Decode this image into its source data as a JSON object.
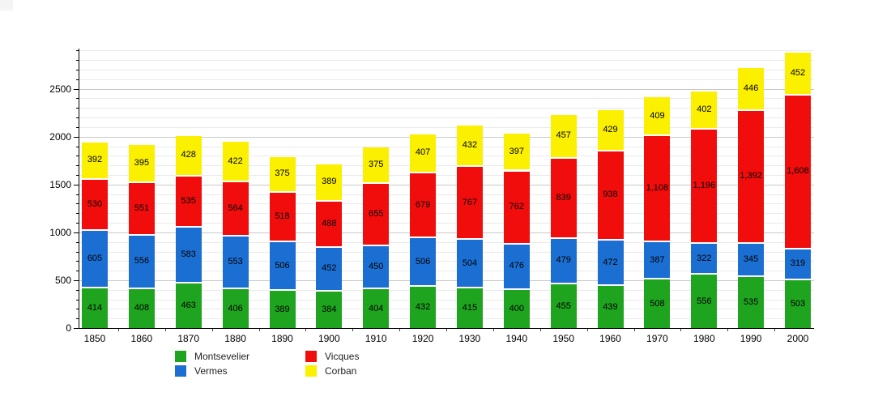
{
  "chart_data": {
    "type": "bar",
    "stacked": true,
    "title": "",
    "categories": [
      "1850",
      "1860",
      "1870",
      "1880",
      "1890",
      "1900",
      "1910",
      "1920",
      "1930",
      "1940",
      "1950",
      "1960",
      "1970",
      "1980",
      "1990",
      "2000"
    ],
    "series": [
      {
        "name": "Montsevelier",
        "color": "#1fa41f",
        "values": [
          414,
          408,
          463,
          406,
          389,
          384,
          404,
          432,
          415,
          400,
          455,
          439,
          508,
          556,
          535,
          503
        ]
      },
      {
        "name": "Vermes",
        "color": "#1c6fd2",
        "values": [
          605,
          556,
          583,
          553,
          506,
          452,
          450,
          506,
          504,
          476,
          479,
          472,
          387,
          322,
          345,
          319
        ]
      },
      {
        "name": "Vicques",
        "color": "#f20d0d",
        "values": [
          530,
          551,
          535,
          564,
          518,
          488,
          655,
          679,
          767,
          762,
          839,
          938,
          1108,
          1196,
          1392,
          1608
        ]
      },
      {
        "name": "Corban",
        "color": "#fbf000",
        "values": [
          392,
          395,
          428,
          422,
          375,
          389,
          375,
          407,
          432,
          397,
          457,
          429,
          409,
          402,
          446,
          452
        ]
      }
    ],
    "y_axis": {
      "tick_labels": [
        "0",
        "500",
        "1000",
        "1500",
        "2000",
        "2500"
      ],
      "tick_values": [
        0,
        500,
        1000,
        1500,
        2000,
        2500
      ],
      "minor_step": 100,
      "minor_max": 2900,
      "ymax": 2920
    },
    "value_labels": true,
    "grid": true,
    "legend": {
      "position": "bottom",
      "columns": [
        [
          "Montsevelier",
          "Vermes"
        ],
        [
          "Vicques",
          "Corban"
        ]
      ]
    }
  }
}
